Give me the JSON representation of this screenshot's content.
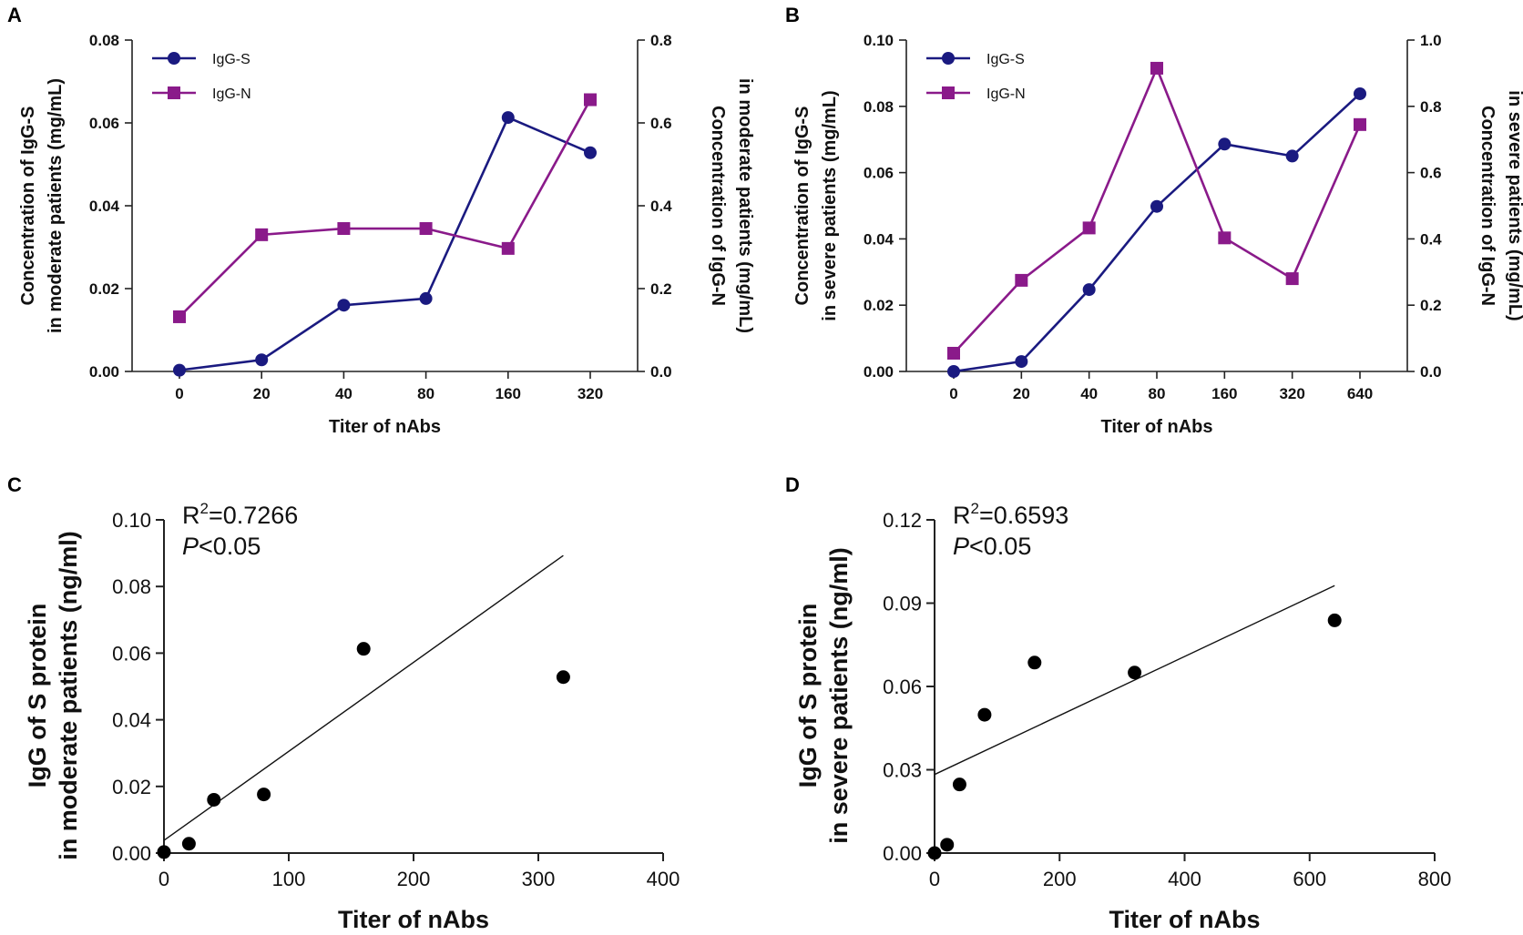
{
  "colors": {
    "igg_s": "#1a1a80",
    "igg_n": "#8a1a8a",
    "scatter": "#000000",
    "axis": "#222222"
  },
  "chart_data": [
    {
      "panel": "A",
      "type": "line",
      "xlabel": "Titer of nAbs",
      "categories": [
        "0",
        "20",
        "40",
        "80",
        "160",
        "320"
      ],
      "ylabel_left": [
        "Concentration of  IgG-S",
        "in moderate patients (mg/mL)"
      ],
      "ylabel_right": [
        "Concentration of  IgG-N",
        "in moderate patients (mg/mL)"
      ],
      "ylim_left": [
        0,
        0.08
      ],
      "ylim_right": [
        0,
        0.8
      ],
      "yticks_left": [
        "0.00",
        "0.02",
        "0.04",
        "0.06",
        "0.08"
      ],
      "yticks_right": [
        "0.0",
        "0.2",
        "0.4",
        "0.6",
        "0.8"
      ],
      "series": [
        {
          "name": "IgG-S",
          "axis": "left",
          "marker": "circle",
          "values": [
            0.0003,
            0.0028,
            0.016,
            0.0176,
            0.0613,
            0.0528
          ]
        },
        {
          "name": "IgG-N",
          "axis": "right",
          "marker": "square",
          "values": [
            0.132,
            0.33,
            0.345,
            0.345,
            0.297,
            0.656
          ]
        }
      ]
    },
    {
      "panel": "B",
      "type": "line",
      "xlabel": "Titer of nAbs",
      "categories": [
        "0",
        "20",
        "40",
        "80",
        "160",
        "320",
        "640"
      ],
      "ylabel_left": [
        "Concentration of  IgG-S",
        "in severe patients (mg/mL)"
      ],
      "ylabel_right": [
        "Concentration of  IgG-N",
        "in severe patients (mg/mL)"
      ],
      "ylim_left": [
        0,
        0.1
      ],
      "ylim_right": [
        0,
        1.0
      ],
      "yticks_left": [
        "0.00",
        "0.02",
        "0.04",
        "0.06",
        "0.08",
        "0.10"
      ],
      "yticks_right": [
        "0.0",
        "0.2",
        "0.4",
        "0.6",
        "0.8",
        "1.0"
      ],
      "series": [
        {
          "name": "IgG-S",
          "axis": "left",
          "marker": "circle",
          "values": [
            0.0,
            0.003,
            0.0247,
            0.0498,
            0.0686,
            0.065,
            0.0838
          ]
        },
        {
          "name": "IgG-N",
          "axis": "right",
          "marker": "square",
          "values": [
            0.055,
            0.275,
            0.433,
            0.915,
            0.403,
            0.28,
            0.745
          ]
        }
      ]
    },
    {
      "panel": "C",
      "type": "scatter",
      "xlabel": "Titer of nAbs",
      "ylabel": [
        "IgG of S protein",
        "in moderate patients (ng/ml)"
      ],
      "xlim": [
        0,
        400
      ],
      "ylim": [
        0,
        0.1
      ],
      "xticks": [
        "0",
        "100",
        "200",
        "300",
        "400"
      ],
      "yticks": [
        "0.00",
        "0.02",
        "0.04",
        "0.06",
        "0.08",
        "0.10"
      ],
      "x": [
        0,
        20,
        40,
        80,
        160,
        320
      ],
      "y": [
        0.0003,
        0.0028,
        0.016,
        0.0176,
        0.0613,
        0.0528
      ],
      "fit": {
        "x": [
          0,
          320
        ],
        "y": [
          0.0038,
          0.0893
        ]
      },
      "r2_prefix": "R",
      "r2_sup": "2",
      "r2_value": "=0.7266",
      "p_label": "P",
      "p_value": "<0.05"
    },
    {
      "panel": "D",
      "type": "scatter",
      "xlabel": "Titer of nAbs",
      "ylabel": [
        "IgG of S protein",
        "in severe patients (ng/ml)"
      ],
      "xlim": [
        0,
        800
      ],
      "ylim": [
        0,
        0.12
      ],
      "xticks": [
        "0",
        "200",
        "400",
        "600",
        "800"
      ],
      "yticks": [
        "0.00",
        "0.03",
        "0.06",
        "0.09",
        "0.12"
      ],
      "x": [
        0,
        20,
        40,
        80,
        160,
        320,
        640
      ],
      "y": [
        0.0,
        0.003,
        0.0247,
        0.0498,
        0.0686,
        0.065,
        0.0838
      ],
      "fit": {
        "x": [
          0,
          640
        ],
        "y": [
          0.0283,
          0.0963
        ]
      },
      "r2_prefix": "R",
      "r2_sup": "2",
      "r2_value": "=0.6593",
      "p_label": "P",
      "p_value": "<0.05"
    }
  ]
}
